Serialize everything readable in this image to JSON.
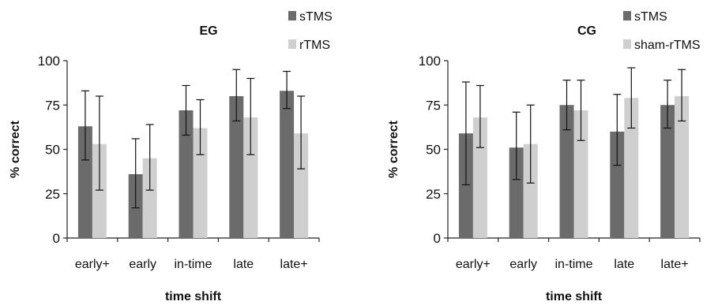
{
  "chart_data": [
    {
      "type": "bar",
      "title": "EG",
      "xlabel": "time shift",
      "ylabel": "% correct",
      "ylim": [
        0,
        100
      ],
      "yticks": [
        "0",
        "25",
        "50",
        "75",
        "100"
      ],
      "grid": false,
      "legend_position": "top-right",
      "categories": [
        "early+",
        "early",
        "in-time",
        "late",
        "late+"
      ],
      "series": [
        {
          "name": "sTMS",
          "color": "#6b6b6b",
          "values": [
            63,
            36,
            72,
            80,
            83
          ],
          "error": [
            [
              44,
              83
            ],
            [
              17,
              56
            ],
            [
              58,
              86
            ],
            [
              66,
              95
            ],
            [
              73,
              94
            ]
          ]
        },
        {
          "name": "rTMS",
          "color": "#cfcfcf",
          "values": [
            53,
            45,
            62,
            68,
            59
          ],
          "error": [
            [
              27,
              80
            ],
            [
              27,
              64
            ],
            [
              47,
              78
            ],
            [
              47,
              90
            ],
            [
              39,
              80
            ]
          ]
        }
      ]
    },
    {
      "type": "bar",
      "title": "CG",
      "xlabel": "time shift",
      "ylabel": "% correct",
      "ylim": [
        0,
        100
      ],
      "yticks": [
        "0",
        "25",
        "50",
        "75",
        "100"
      ],
      "grid": false,
      "legend_position": "top-right",
      "categories": [
        "early+",
        "early",
        "in-time",
        "late",
        "late+"
      ],
      "series": [
        {
          "name": "sTMS",
          "color": "#6b6b6b",
          "values": [
            59,
            51,
            75,
            60,
            75
          ],
          "error": [
            [
              30,
              88
            ],
            [
              33,
              71
            ],
            [
              61,
              89
            ],
            [
              41,
              81
            ],
            [
              62,
              89
            ]
          ]
        },
        {
          "name": "sham-rTMS",
          "color": "#cfcfcf",
          "values": [
            68,
            53,
            72,
            79,
            80
          ],
          "error": [
            [
              51,
              86
            ],
            [
              31,
              75
            ],
            [
              55,
              89
            ],
            [
              62,
              96
            ],
            [
              66,
              95
            ]
          ]
        }
      ]
    }
  ]
}
